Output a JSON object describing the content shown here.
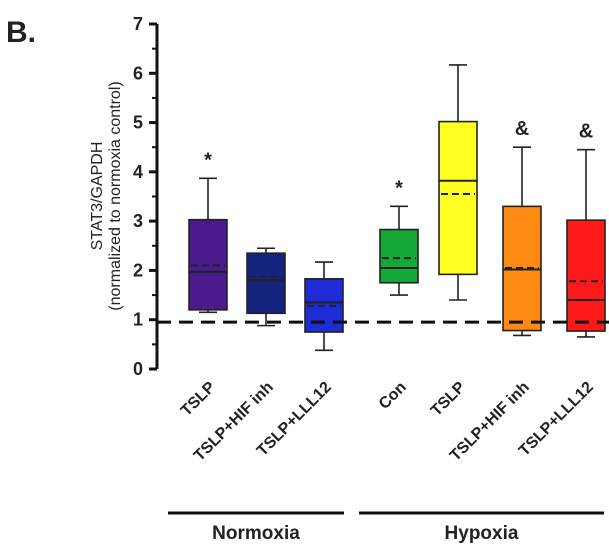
{
  "panel_label": "B.",
  "chart_data": {
    "type": "box",
    "ylabel_line1": "STAT3/GAPDH",
    "ylabel_line2": "(normalized to normoxia control)",
    "ylim": [
      0,
      7
    ],
    "yticks": [
      "0",
      "1",
      "2",
      "3",
      "4",
      "5",
      "6",
      "7"
    ],
    "reference_line": 0.95,
    "categories": [
      "TSLP",
      "TSLP+HIF inh",
      "TSLP+LLL12",
      "Con",
      "TSLP",
      "TSLP+HIF inh",
      "TSLP+LLL12"
    ],
    "boxes": [
      {
        "min": 1.15,
        "q1": 1.2,
        "median": 1.97,
        "mean": 2.1,
        "q3": 3.03,
        "max": 3.87,
        "color": "#4b1a8c",
        "annotation": "*"
      },
      {
        "min": 0.88,
        "q1": 1.13,
        "median": 1.8,
        "mean": 1.87,
        "q3": 2.35,
        "max": 2.45,
        "color": "#14237e",
        "annotation": ""
      },
      {
        "min": 0.38,
        "q1": 0.75,
        "median": 1.35,
        "mean": 1.28,
        "q3": 1.83,
        "max": 2.17,
        "color": "#1f2bd6",
        "annotation": ""
      },
      {
        "min": 1.5,
        "q1": 1.75,
        "median": 2.05,
        "mean": 2.25,
        "q3": 2.83,
        "max": 3.3,
        "color": "#15a838",
        "annotation": "*"
      },
      {
        "min": 1.4,
        "q1": 1.92,
        "median": 3.82,
        "mean": 3.55,
        "q3": 5.02,
        "max": 6.17,
        "color": "#ffff22",
        "annotation": ""
      },
      {
        "min": 0.68,
        "q1": 0.78,
        "median": 2.02,
        "mean": 2.05,
        "q3": 3.3,
        "max": 4.5,
        "color": "#ff8a12",
        "annotation": "&"
      },
      {
        "min": 0.65,
        "q1": 0.77,
        "median": 1.4,
        "mean": 1.78,
        "q3": 3.02,
        "max": 4.45,
        "color": "#ff1a1a",
        "annotation": "&"
      }
    ],
    "groups": [
      {
        "label": "Normoxia",
        "from": 0,
        "to": 2
      },
      {
        "label": "Hypoxia",
        "from": 3,
        "to": 6
      }
    ]
  }
}
